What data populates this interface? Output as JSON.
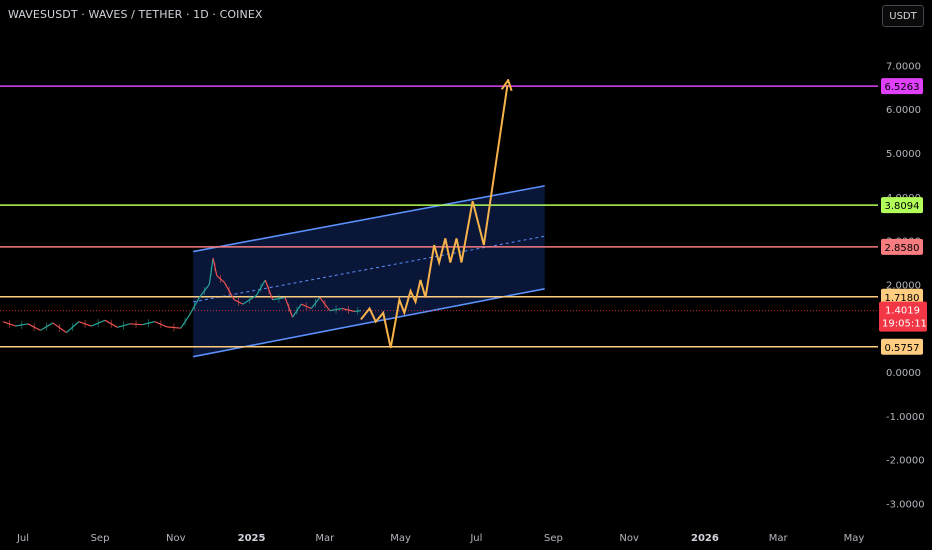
{
  "header": {
    "title": "WAVESUSDT · WAVES / TETHER · 1D · COINEX",
    "currency_button": "USDT"
  },
  "colors": {
    "background": "#000000",
    "magenta": "#e040fb",
    "green": "#b2ff59",
    "pink": "#f77c80",
    "orange": "#ffcc80",
    "arrow": "#f7b24c",
    "channel": "#5b8ff9",
    "price_label": "#f23645",
    "candle_up": "#26a69a",
    "candle_down": "#ef5350"
  },
  "chart_data": {
    "type": "line",
    "symbol": "WAVESUSDT",
    "interval": "1D",
    "y_ticks": [
      7.0,
      6.0,
      5.0,
      4.0,
      3.0,
      2.0,
      0.0,
      -1.0,
      -2.0,
      -3.0
    ],
    "y_tick_labels": [
      "7.0000",
      "6.0000",
      "5.0000",
      "4.0000",
      "3.0000",
      "2.0000",
      "0.0000",
      "-1.0000",
      "-2.0000",
      "-3.0000"
    ],
    "x_ticks": [
      {
        "label": "Jul",
        "date": "2024-07-01",
        "bold": false
      },
      {
        "label": "Sep",
        "date": "2024-09-01",
        "bold": false
      },
      {
        "label": "Nov",
        "date": "2024-11-01",
        "bold": false
      },
      {
        "label": "2025",
        "date": "2025-01-01",
        "bold": true
      },
      {
        "label": "Mar",
        "date": "2025-03-01",
        "bold": false
      },
      {
        "label": "May",
        "date": "2025-05-01",
        "bold": false
      },
      {
        "label": "Jul",
        "date": "2025-07-01",
        "bold": false
      },
      {
        "label": "Sep",
        "date": "2025-09-01",
        "bold": false
      },
      {
        "label": "Nov",
        "date": "2025-11-01",
        "bold": false
      },
      {
        "label": "2026",
        "date": "2026-01-01",
        "bold": true
      },
      {
        "label": "Mar",
        "date": "2026-03-01",
        "bold": false
      },
      {
        "label": "May",
        "date": "2026-05-01",
        "bold": false
      }
    ],
    "horizontal_levels": [
      {
        "value": 6.5263,
        "label": "6.5263",
        "color": "#e040fb"
      },
      {
        "value": 3.8094,
        "label": "3.8094",
        "color": "#b2ff59"
      },
      {
        "value": 2.858,
        "label": "2.8580",
        "color": "#f77c80"
      },
      {
        "value": 1.718,
        "label": "1.7180",
        "color": "#ffcc80"
      },
      {
        "value": 0.5757,
        "label": "0.5757",
        "color": "#ffcc80"
      }
    ],
    "current_price": {
      "value": 1.4019,
      "label": "1.4019",
      "countdown": "19:05:11"
    },
    "channel": {
      "upper": [
        {
          "x": "2024-11-15",
          "y": 2.75
        },
        {
          "x": "2025-08-25",
          "y": 4.25
        }
      ],
      "lower": [
        {
          "x": "2024-11-15",
          "y": 0.35
        },
        {
          "x": "2025-08-25",
          "y": 1.9
        }
      ],
      "mid": [
        {
          "x": "2024-11-15",
          "y": 1.6
        },
        {
          "x": "2025-08-25",
          "y": 3.1
        }
      ]
    },
    "projection_path": [
      {
        "x": "2025-03-30",
        "y": 1.2
      },
      {
        "x": "2025-04-06",
        "y": 1.45
      },
      {
        "x": "2025-04-11",
        "y": 1.15
      },
      {
        "x": "2025-04-17",
        "y": 1.35
      },
      {
        "x": "2025-04-23",
        "y": 0.55
      },
      {
        "x": "2025-04-30",
        "y": 1.65
      },
      {
        "x": "2025-05-04",
        "y": 1.35
      },
      {
        "x": "2025-05-09",
        "y": 1.85
      },
      {
        "x": "2025-05-13",
        "y": 1.6
      },
      {
        "x": "2025-05-17",
        "y": 2.1
      },
      {
        "x": "2025-05-21",
        "y": 1.7
      },
      {
        "x": "2025-05-28",
        "y": 2.9
      },
      {
        "x": "2025-06-01",
        "y": 2.5
      },
      {
        "x": "2025-06-06",
        "y": 3.05
      },
      {
        "x": "2025-06-10",
        "y": 2.5
      },
      {
        "x": "2025-06-15",
        "y": 3.05
      },
      {
        "x": "2025-06-19",
        "y": 2.5
      },
      {
        "x": "2025-06-28",
        "y": 3.9
      },
      {
        "x": "2025-07-07",
        "y": 2.9
      },
      {
        "x": "2025-07-26",
        "y": 6.55
      }
    ],
    "price_series": [
      {
        "x": "2024-06-15",
        "y": 1.15
      },
      {
        "x": "2024-06-25",
        "y": 1.05
      },
      {
        "x": "2024-07-05",
        "y": 1.1
      },
      {
        "x": "2024-07-15",
        "y": 0.95
      },
      {
        "x": "2024-07-25",
        "y": 1.12
      },
      {
        "x": "2024-08-05",
        "y": 0.9
      },
      {
        "x": "2024-08-15",
        "y": 1.15
      },
      {
        "x": "2024-08-25",
        "y": 1.05
      },
      {
        "x": "2024-09-05",
        "y": 1.18
      },
      {
        "x": "2024-09-15",
        "y": 1.02
      },
      {
        "x": "2024-09-25",
        "y": 1.1
      },
      {
        "x": "2024-10-05",
        "y": 1.08
      },
      {
        "x": "2024-10-15",
        "y": 1.15
      },
      {
        "x": "2024-10-25",
        "y": 1.03
      },
      {
        "x": "2024-11-05",
        "y": 1.0
      },
      {
        "x": "2024-11-12",
        "y": 1.3
      },
      {
        "x": "2024-11-20",
        "y": 1.7
      },
      {
        "x": "2024-11-28",
        "y": 2.0
      },
      {
        "x": "2024-12-01",
        "y": 2.6
      },
      {
        "x": "2024-12-04",
        "y": 2.2
      },
      {
        "x": "2024-12-10",
        "y": 2.05
      },
      {
        "x": "2024-12-18",
        "y": 1.65
      },
      {
        "x": "2024-12-25",
        "y": 1.55
      },
      {
        "x": "2025-01-05",
        "y": 1.75
      },
      {
        "x": "2025-01-12",
        "y": 2.1
      },
      {
        "x": "2025-01-18",
        "y": 1.65
      },
      {
        "x": "2025-01-28",
        "y": 1.7
      },
      {
        "x": "2025-02-03",
        "y": 1.25
      },
      {
        "x": "2025-02-10",
        "y": 1.55
      },
      {
        "x": "2025-02-18",
        "y": 1.45
      },
      {
        "x": "2025-02-25",
        "y": 1.7
      },
      {
        "x": "2025-03-05",
        "y": 1.4
      },
      {
        "x": "2025-03-15",
        "y": 1.45
      },
      {
        "x": "2025-03-25",
        "y": 1.38
      },
      {
        "x": "2025-03-30",
        "y": 1.4019
      }
    ]
  }
}
